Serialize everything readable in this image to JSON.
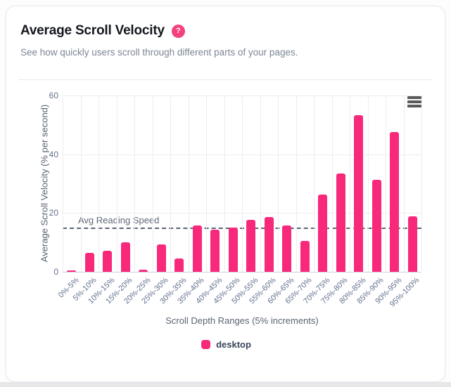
{
  "card": {
    "title": "Average Scroll Velocity",
    "help_badge": "?",
    "subtitle": "See how quickly users scroll through different parts of your pages."
  },
  "colors": {
    "accent": "#F8297B",
    "help_badge": "#F4417F",
    "plotline": "#5B6471"
  },
  "chart_data": {
    "type": "bar",
    "title": "",
    "xlabel": "Scroll Depth Ranges (5% increments)",
    "ylabel": "Average Scroll Velocity (% per second)",
    "ylim": [
      0,
      60
    ],
    "yticks": [
      0,
      20,
      40,
      60
    ],
    "grid": true,
    "legend_position": "bottom",
    "categories": [
      "0%-5%",
      "5%-10%",
      "10%-15%",
      "15%-20%",
      "20%-25%",
      "25%-30%",
      "30%-35%",
      "35%-40%",
      "40%-45%",
      "45%-50%",
      "50%-55%",
      "55%-60%",
      "60%-65%",
      "65%-70%",
      "70%-75%",
      "75%-80%",
      "80%-85%",
      "85%-90%",
      "90%-95%",
      "95%-100%"
    ],
    "series": [
      {
        "name": "desktop",
        "color": "#F8297B",
        "values": [
          0.5,
          6.5,
          7.2,
          10,
          0.8,
          9.4,
          4.6,
          15.8,
          14.3,
          15,
          17.8,
          18.6,
          15.7,
          10.5,
          26.2,
          33.5,
          53.3,
          31.4,
          47.5,
          19
        ]
      }
    ],
    "plotline": {
      "value": 15,
      "label": "Avg Reading Speed"
    }
  }
}
